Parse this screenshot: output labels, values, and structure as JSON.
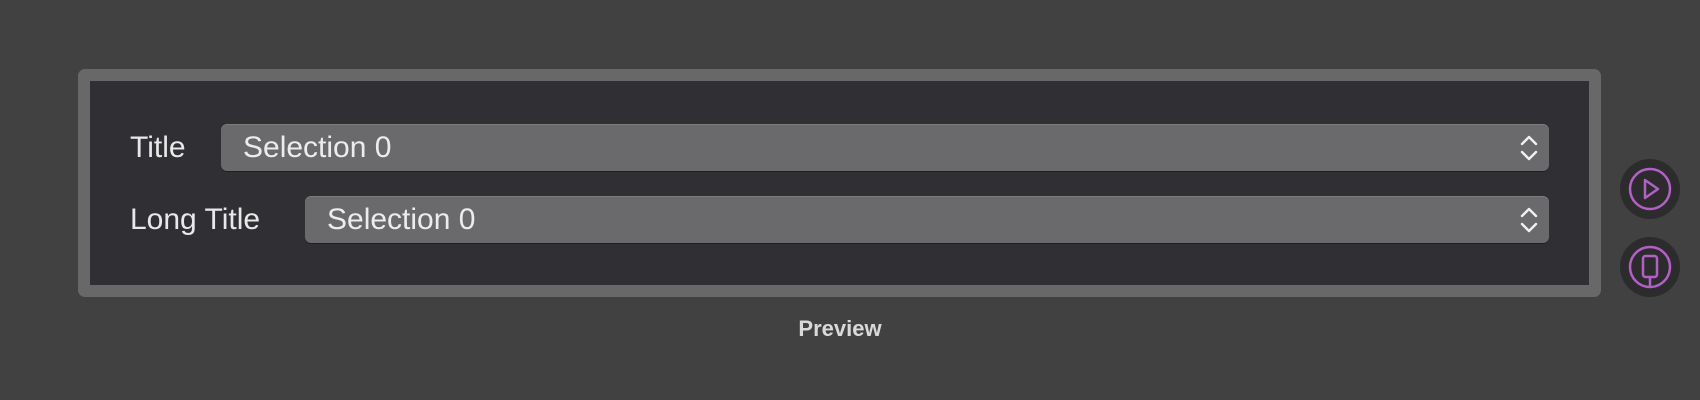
{
  "form": {
    "rows": [
      {
        "label": "Title",
        "selected": "Selection 0"
      },
      {
        "label": "Long Title",
        "selected": "Selection 0"
      }
    ]
  },
  "preview": {
    "caption": "Preview"
  },
  "side_buttons": [
    {
      "icon": "play-icon"
    },
    {
      "icon": "device-icon"
    }
  ],
  "colors": {
    "background": "#414141",
    "frame": "#686868",
    "canvas": "#303034",
    "popup": "#6a6a6c",
    "accent": "#b45fc8"
  }
}
